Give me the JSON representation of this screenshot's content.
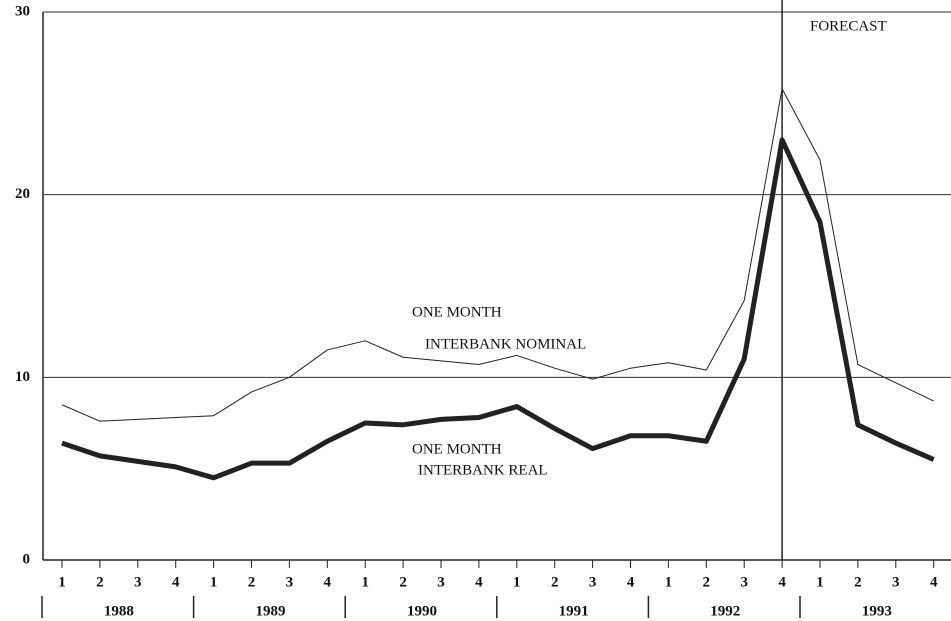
{
  "chart_data": {
    "type": "line",
    "categories": [
      "1",
      "2",
      "3",
      "4",
      "1",
      "2",
      "3",
      "4",
      "1",
      "2",
      "3",
      "4",
      "1",
      "2",
      "3",
      "4",
      "1",
      "2",
      "3",
      "4",
      "1",
      "2",
      "3",
      "4"
    ],
    "years": [
      "1988",
      "1989",
      "1990",
      "1991",
      "1992",
      "1993"
    ],
    "series": [
      {
        "label": [
          "ONE MONTH",
          "INTERBANK NOMINAL"
        ],
        "color": "#222",
        "width": 1,
        "values": [
          8.5,
          7.6,
          7.7,
          7.8,
          7.9,
          9.2,
          10,
          11.5,
          12,
          11.1,
          10.9,
          10.7,
          11.2,
          10.5,
          9.9,
          10.5,
          10.8,
          10.4,
          14.2,
          25.8,
          21.9,
          10.7,
          9.7,
          8.7
        ]
      },
      {
        "label": [
          "ONE MONTH",
          "INTERBANK REAL"
        ],
        "color": "#222",
        "width": 5,
        "values": [
          6.4,
          5.7,
          5.4,
          5.1,
          4.5,
          5.3,
          5.3,
          6.5,
          7.5,
          7.4,
          7.7,
          7.8,
          8.4,
          7.2,
          6.1,
          6.8,
          6.8,
          6.5,
          11.0,
          23.0,
          18.5,
          7.4,
          6.4,
          5.5
        ]
      }
    ],
    "forecast": {
      "label": "FORECAST",
      "category_index": 19
    },
    "ylim": [
      0,
      30
    ],
    "yticks": [
      0,
      10,
      20,
      30
    ],
    "grid": true
  }
}
